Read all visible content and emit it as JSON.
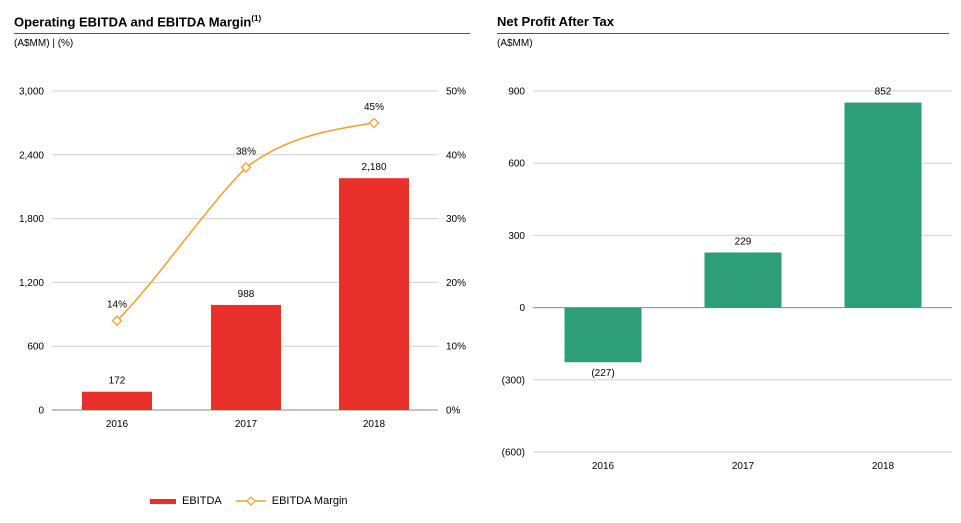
{
  "left_panel": {
    "title": "Operating EBITDA and EBITDA Margin",
    "title_sup": "(1)",
    "subtitle": "(A$MM) | (%)"
  },
  "right_panel": {
    "title": "Net Profit After Tax",
    "subtitle": "(A$MM)"
  },
  "colors": {
    "ebitda_bar": "#e8302a",
    "margin_line": "#f0a030",
    "npat_bar": "#2e9e78",
    "grid": "#d0d0d0"
  },
  "chart_data": [
    {
      "type": "bar",
      "title": "Operating EBITDA and EBITDA Margin",
      "categories": [
        "2016",
        "2017",
        "2018"
      ],
      "series": [
        {
          "name": "EBITDA",
          "type": "bar",
          "axis": "left",
          "values": [
            172,
            988,
            2180
          ],
          "labels": [
            "172",
            "988",
            "2,180"
          ]
        },
        {
          "name": "EBITDA Margin",
          "type": "line",
          "axis": "right",
          "values": [
            14,
            38,
            45
          ],
          "labels": [
            "14%",
            "38%",
            "45%"
          ]
        }
      ],
      "ylim_left": [
        0,
        3000
      ],
      "yticks_left": [
        0,
        600,
        1200,
        1800,
        2400,
        3000
      ],
      "ytick_labels_left": [
        "0",
        "600",
        "1,200",
        "1,800",
        "2,400",
        "3,000"
      ],
      "ylim_right": [
        0,
        50
      ],
      "yticks_right": [
        0,
        10,
        20,
        30,
        40,
        50
      ],
      "ytick_labels_right": [
        "0%",
        "10%",
        "20%",
        "30%",
        "40%",
        "50%"
      ],
      "grid": true,
      "legend": "bottom"
    },
    {
      "type": "bar",
      "title": "Net Profit After Tax",
      "categories": [
        "2016",
        "2017",
        "2018"
      ],
      "values": [
        -227,
        229,
        852
      ],
      "labels": [
        "(227)",
        "229",
        "852"
      ],
      "ylim": [
        -600,
        900
      ],
      "yticks": [
        -600,
        -300,
        0,
        300,
        600,
        900
      ],
      "ytick_labels": [
        "(600)",
        "(300)",
        "0",
        "300",
        "600",
        "900"
      ],
      "grid": true
    }
  ]
}
